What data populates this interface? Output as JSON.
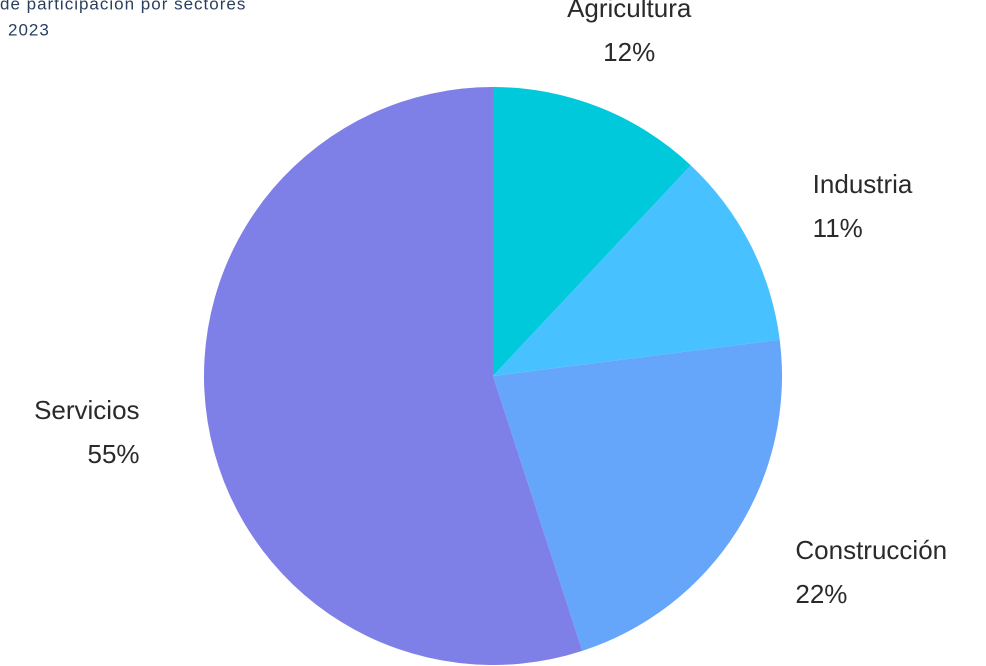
{
  "chart_data": {
    "type": "pie",
    "title": "de participación por sectores",
    "subtitle": "2023",
    "categories": [
      "Agricultura",
      "Industria",
      "Construcción",
      "Servicios"
    ],
    "values": [
      12,
      11,
      22,
      55
    ],
    "value_labels": [
      "12%",
      "11%",
      "22%",
      "55%"
    ],
    "colors": [
      "#00c9db",
      "#47c1ff",
      "#65a6fb",
      "#7e80e7"
    ]
  }
}
